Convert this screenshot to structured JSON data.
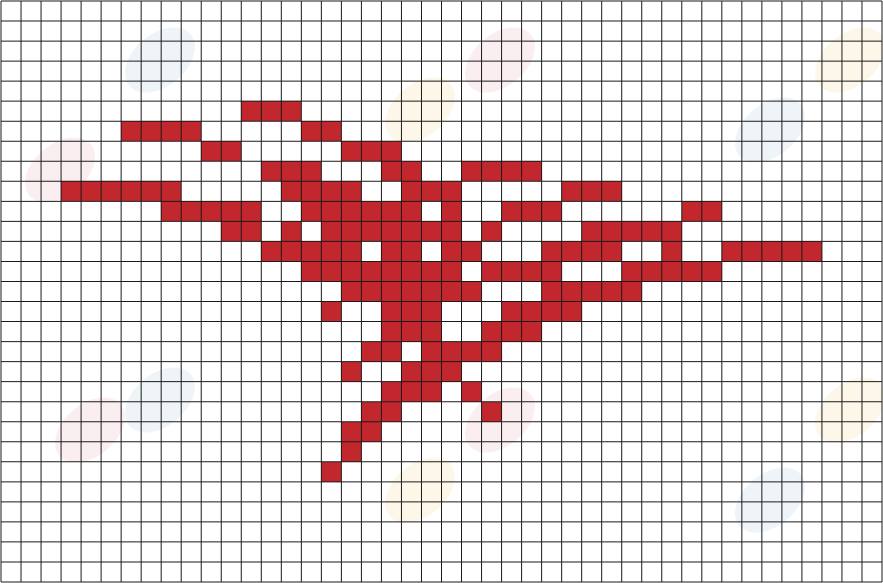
{
  "grid": {
    "cols": 44,
    "rows": 29,
    "line_color": "#1a1a1a",
    "background": "#ffffff"
  },
  "pattern": {
    "fill_color": "#c1272d",
    "cells": [
      [
        5,
        12
      ],
      [
        5,
        13
      ],
      [
        5,
        14
      ],
      [
        6,
        6
      ],
      [
        6,
        7
      ],
      [
        6,
        8
      ],
      [
        6,
        9
      ],
      [
        6,
        15
      ],
      [
        6,
        16
      ],
      [
        7,
        10
      ],
      [
        7,
        11
      ],
      [
        7,
        17
      ],
      [
        7,
        18
      ],
      [
        7,
        19
      ],
      [
        8,
        13
      ],
      [
        8,
        14
      ],
      [
        8,
        15
      ],
      [
        8,
        19
      ],
      [
        8,
        20
      ],
      [
        8,
        23
      ],
      [
        8,
        24
      ],
      [
        8,
        25
      ],
      [
        8,
        26
      ],
      [
        9,
        3
      ],
      [
        9,
        4
      ],
      [
        9,
        5
      ],
      [
        9,
        6
      ],
      [
        9,
        7
      ],
      [
        9,
        8
      ],
      [
        9,
        14
      ],
      [
        9,
        15
      ],
      [
        9,
        16
      ],
      [
        9,
        17
      ],
      [
        9,
        20
      ],
      [
        9,
        21
      ],
      [
        9,
        22
      ],
      [
        9,
        28
      ],
      [
        9,
        29
      ],
      [
        9,
        30
      ],
      [
        10,
        8
      ],
      [
        10,
        9
      ],
      [
        10,
        10
      ],
      [
        10,
        11
      ],
      [
        10,
        12
      ],
      [
        10,
        15
      ],
      [
        10,
        16
      ],
      [
        10,
        17
      ],
      [
        10,
        18
      ],
      [
        10,
        19
      ],
      [
        10,
        20
      ],
      [
        10,
        22
      ],
      [
        10,
        25
      ],
      [
        10,
        26
      ],
      [
        10,
        27
      ],
      [
        10,
        34
      ],
      [
        10,
        35
      ],
      [
        11,
        11
      ],
      [
        11,
        12
      ],
      [
        11,
        14
      ],
      [
        11,
        16
      ],
      [
        11,
        17
      ],
      [
        11,
        18
      ],
      [
        11,
        19
      ],
      [
        11,
        20
      ],
      [
        11,
        21
      ],
      [
        11,
        22
      ],
      [
        11,
        24
      ],
      [
        11,
        29
      ],
      [
        11,
        30
      ],
      [
        11,
        31
      ],
      [
        11,
        32
      ],
      [
        11,
        33
      ],
      [
        12,
        13
      ],
      [
        12,
        14
      ],
      [
        12,
        15
      ],
      [
        12,
        16
      ],
      [
        12,
        17
      ],
      [
        12,
        19
      ],
      [
        12,
        20
      ],
      [
        12,
        22
      ],
      [
        12,
        23
      ],
      [
        12,
        27
      ],
      [
        12,
        28
      ],
      [
        12,
        29
      ],
      [
        12,
        30
      ],
      [
        12,
        33
      ],
      [
        12,
        36
      ],
      [
        12,
        37
      ],
      [
        12,
        38
      ],
      [
        12,
        39
      ],
      [
        12,
        40
      ],
      [
        13,
        15
      ],
      [
        13,
        16
      ],
      [
        13,
        17
      ],
      [
        13,
        18
      ],
      [
        13,
        19
      ],
      [
        13,
        20
      ],
      [
        13,
        21
      ],
      [
        13,
        22
      ],
      [
        13,
        24
      ],
      [
        13,
        25
      ],
      [
        13,
        26
      ],
      [
        13,
        27
      ],
      [
        13,
        31
      ],
      [
        13,
        32
      ],
      [
        13,
        33
      ],
      [
        13,
        34
      ],
      [
        13,
        35
      ],
      [
        14,
        17
      ],
      [
        14,
        18
      ],
      [
        14,
        19
      ],
      [
        14,
        20
      ],
      [
        14,
        21
      ],
      [
        14,
        22
      ],
      [
        14,
        23
      ],
      [
        14,
        27
      ],
      [
        14,
        28
      ],
      [
        14,
        29
      ],
      [
        14,
        30
      ],
      [
        14,
        31
      ],
      [
        15,
        16
      ],
      [
        15,
        19
      ],
      [
        15,
        20
      ],
      [
        15,
        21
      ],
      [
        15,
        25
      ],
      [
        15,
        26
      ],
      [
        15,
        27
      ],
      [
        15,
        28
      ],
      [
        16,
        19
      ],
      [
        16,
        20
      ],
      [
        16,
        21
      ],
      [
        16,
        24
      ],
      [
        16,
        25
      ],
      [
        16,
        26
      ],
      [
        17,
        18
      ],
      [
        17,
        19
      ],
      [
        17,
        21
      ],
      [
        17,
        22
      ],
      [
        17,
        23
      ],
      [
        17,
        24
      ],
      [
        18,
        17
      ],
      [
        18,
        20
      ],
      [
        18,
        21
      ],
      [
        18,
        22
      ],
      [
        19,
        19
      ],
      [
        19,
        20
      ],
      [
        19,
        21
      ],
      [
        19,
        23
      ],
      [
        20,
        18
      ],
      [
        20,
        19
      ],
      [
        20,
        24
      ],
      [
        21,
        17
      ],
      [
        21,
        18
      ],
      [
        22,
        17
      ],
      [
        23,
        16
      ]
    ]
  },
  "watermark": {
    "colors": [
      "#e8a2ad",
      "#a8c4dc",
      "#f4d58a"
    ]
  }
}
